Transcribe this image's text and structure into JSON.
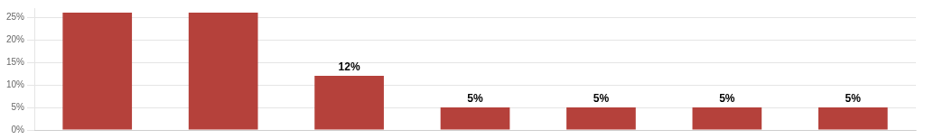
{
  "chart_data": {
    "type": "bar",
    "categories": [
      null,
      null,
      null,
      null,
      null,
      null,
      null
    ],
    "values": [
      26,
      26,
      12,
      5,
      5,
      5,
      5
    ],
    "value_labels": [
      null,
      null,
      "12%",
      "5%",
      "5%",
      "5%",
      "5%"
    ],
    "data_labels": true,
    "color": "#b5413b",
    "ylim": [
      0,
      27
    ],
    "yticks": [
      {
        "value": 0,
        "label": "0%"
      },
      {
        "value": 5,
        "label": "5%"
      },
      {
        "value": 10,
        "label": "10%"
      },
      {
        "value": 15,
        "label": "15%"
      },
      {
        "value": 20,
        "label": "20%"
      },
      {
        "value": 25,
        "label": "25%"
      }
    ],
    "grid": true
  }
}
